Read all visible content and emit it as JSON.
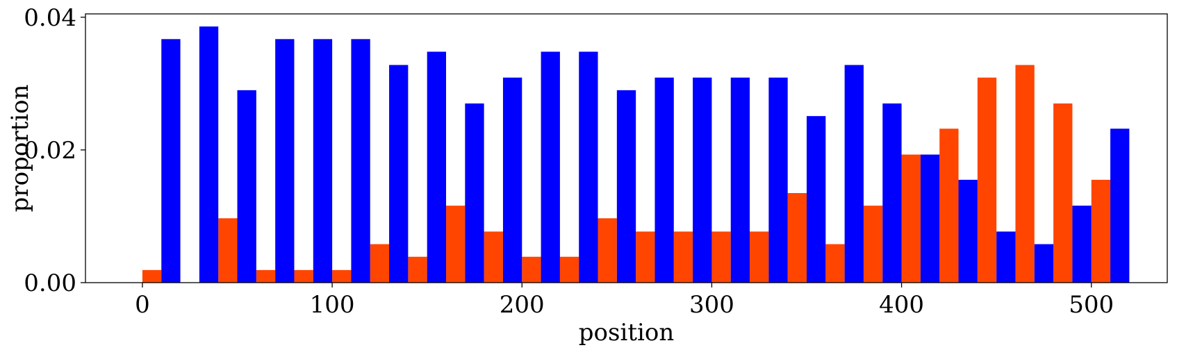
{
  "chart_data": {
    "type": "bar",
    "xlabel": "position",
    "ylabel": "proportion",
    "xlim": [
      -30,
      540
    ],
    "ylim": [
      0,
      0.0405
    ],
    "xticks": [
      0,
      100,
      200,
      300,
      400,
      500
    ],
    "xtick_labels": [
      "0",
      "100",
      "200",
      "300",
      "400",
      "500"
    ],
    "yticks": [
      0,
      0.02,
      0.04
    ],
    "ytick_labels": [
      "0.00",
      "0.02",
      "0.04"
    ],
    "bin_width": 20,
    "bin_starts": [
      0,
      20,
      40,
      60,
      80,
      100,
      120,
      140,
      160,
      180,
      200,
      220,
      240,
      260,
      280,
      300,
      320,
      340,
      360,
      380,
      400,
      420,
      440,
      460,
      480,
      500
    ],
    "series": [
      {
        "color": "#ff4500",
        "values": [
          0.0019,
          0.0,
          0.0097,
          0.0019,
          0.0019,
          0.0019,
          0.0058,
          0.0039,
          0.0116,
          0.0077,
          0.0039,
          0.0039,
          0.0097,
          0.0077,
          0.0077,
          0.0077,
          0.0077,
          0.0135,
          0.0058,
          0.0116,
          0.0193,
          0.0232,
          0.0309,
          0.0328,
          0.027,
          0.0155
        ]
      },
      {
        "color": "#0000ff",
        "values": [
          0.0367,
          0.0386,
          0.029,
          0.0367,
          0.0367,
          0.0367,
          0.0328,
          0.0348,
          0.027,
          0.0309,
          0.0348,
          0.0348,
          0.029,
          0.0309,
          0.0309,
          0.0309,
          0.0309,
          0.0251,
          0.0328,
          0.027,
          0.0193,
          0.0155,
          0.0077,
          0.0058,
          0.0116,
          0.0232
        ]
      }
    ],
    "grid": false,
    "legend": "none"
  }
}
